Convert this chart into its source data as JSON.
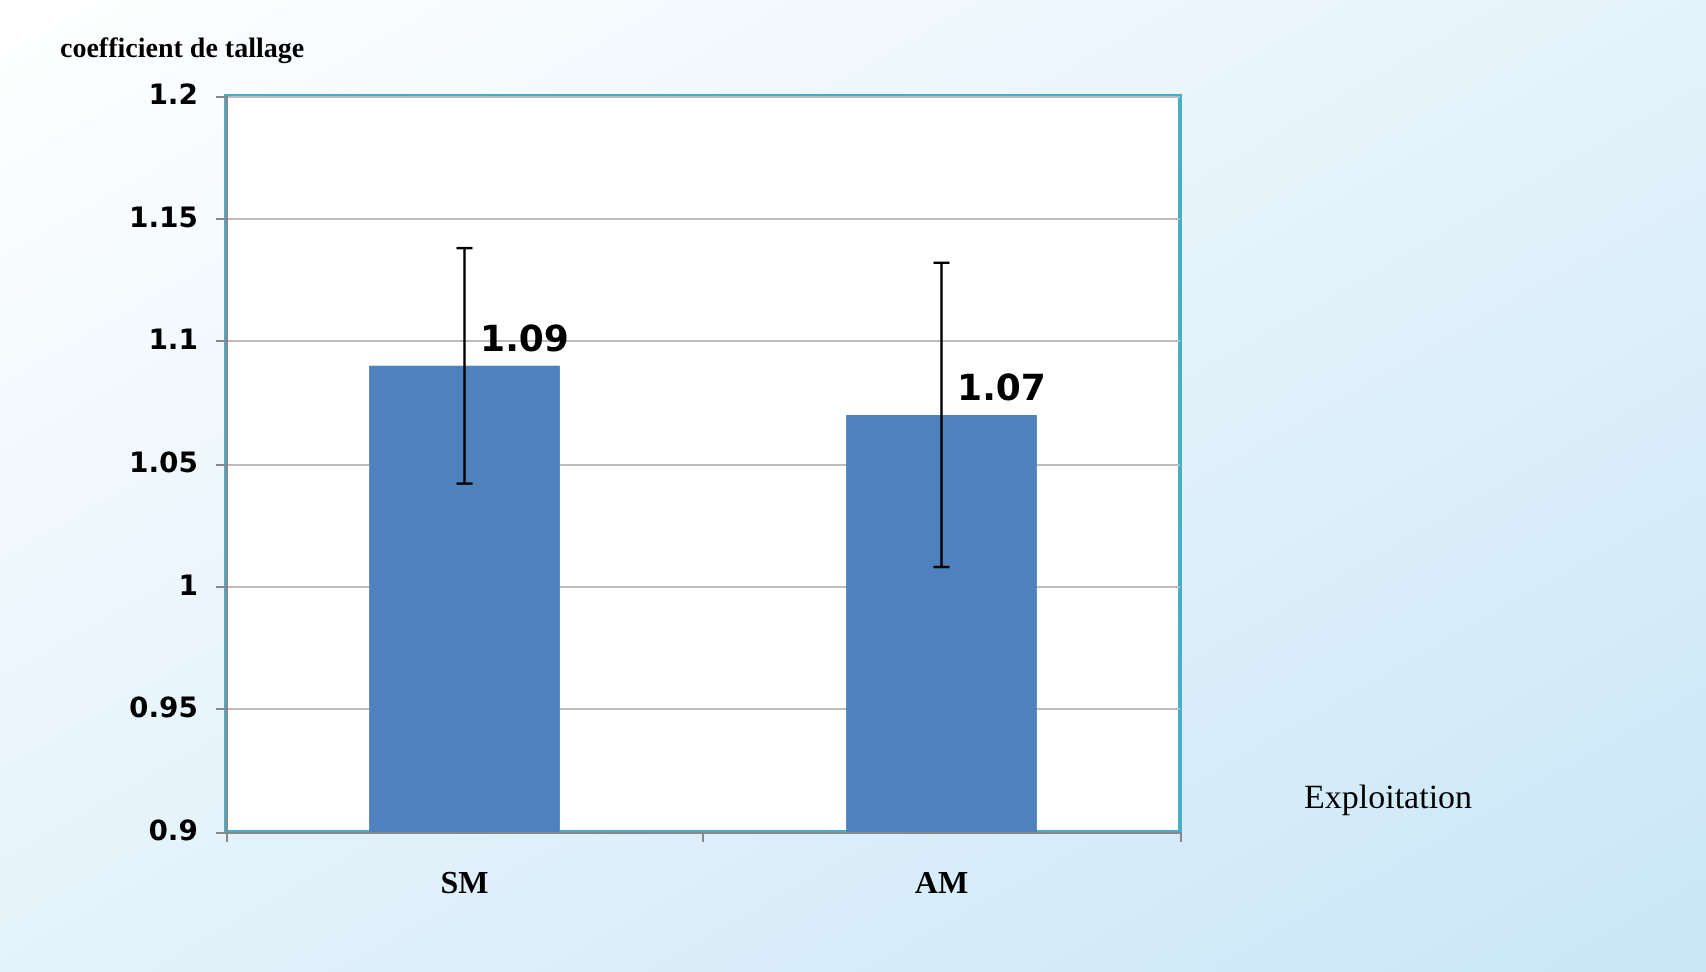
{
  "chart_data": {
    "type": "bar",
    "ylabel": "coefficient de tallage",
    "xlabel": "Exploitation",
    "categories": [
      "SM",
      "AM"
    ],
    "series": [
      {
        "color": "#4f81bd",
        "values": [
          1.09,
          1.07
        ],
        "errors": [
          0.048,
          0.062
        ]
      }
    ],
    "ylim": [
      0.9,
      1.2
    ],
    "yticks": [
      0.9,
      0.95,
      1,
      1.05,
      1.1,
      1.15,
      1.2
    ],
    "grid": "y",
    "data_labels": true
  }
}
